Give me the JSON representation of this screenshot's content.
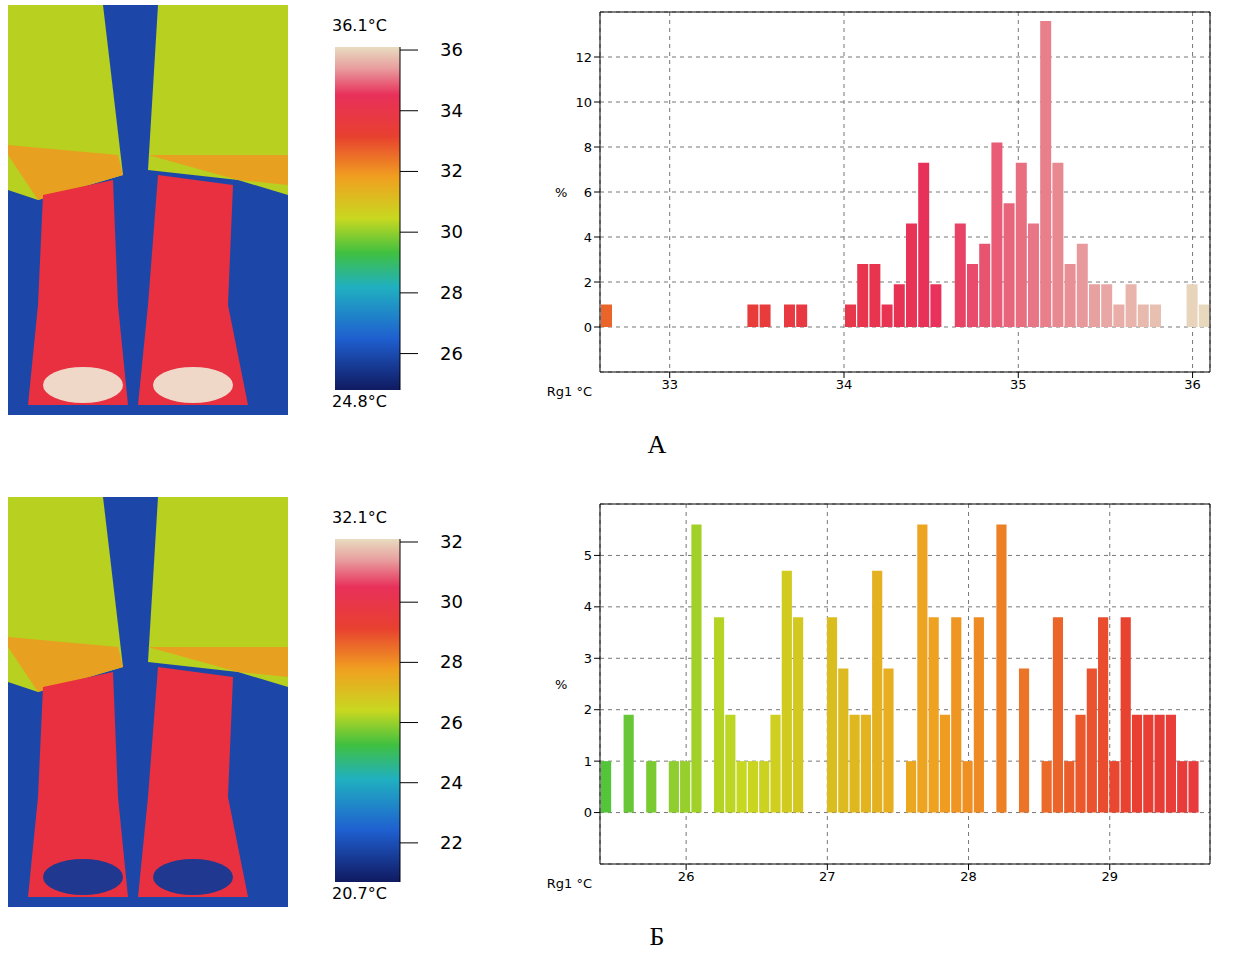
{
  "chart_data": [
    {
      "type": "histogram",
      "panel": "А",
      "x_label": "Rg1 °C",
      "y_label": "%",
      "bins": [
        32.6,
        32.67,
        32.74,
        32.81,
        32.88,
        32.95,
        33.02,
        33.09,
        33.16,
        33.23,
        33.3,
        33.37,
        33.44,
        33.51,
        33.58,
        33.65,
        33.72,
        33.79,
        33.86,
        33.93,
        34.0,
        34.07,
        34.14,
        34.21,
        34.28,
        34.35,
        34.42,
        34.49,
        34.56,
        34.63,
        34.7,
        34.77,
        34.84,
        34.91,
        34.98,
        35.05,
        35.12,
        35.19,
        35.26,
        35.33,
        35.4,
        35.47,
        35.54,
        35.61,
        35.68,
        35.75,
        35.82,
        35.89,
        35.96,
        36.03,
        36.1
      ],
      "values": [
        1,
        0,
        0,
        0,
        0,
        0,
        0,
        0,
        0,
        0,
        0,
        0,
        1,
        1,
        0,
        1,
        1,
        0,
        0,
        0,
        1,
        2.8,
        2.8,
        1,
        1.9,
        4.6,
        7.3,
        1.9,
        0,
        4.6,
        2.8,
        3.7,
        8.2,
        5.5,
        7.3,
        4.6,
        13.6,
        7.3,
        2.8,
        3.7,
        1.9,
        1.9,
        1,
        1.9,
        1,
        1,
        0,
        0,
        1.9,
        1
      ],
      "xlim": [
        32.6,
        36.1
      ],
      "xticks": [
        33,
        34,
        35,
        36
      ],
      "ylim": [
        -2,
        14
      ],
      "yticks": [
        0,
        2,
        4,
        6,
        8,
        10,
        12
      ],
      "grid": true,
      "color_bar": {
        "min": {
          "value": 24.8,
          "label": "24.8°C"
        },
        "max": {
          "value": 36.1,
          "label": "36.1°C"
        },
        "ticks": [
          26,
          28,
          30,
          32,
          34,
          36
        ]
      }
    },
    {
      "type": "histogram",
      "panel": "Б",
      "x_label": "Rg1 °C",
      "y_label": "%",
      "bins": [
        25.39,
        25.47,
        25.55,
        25.63,
        25.71,
        25.79,
        25.87,
        25.95,
        26.03,
        26.11,
        26.19,
        26.27,
        26.35,
        26.43,
        26.51,
        26.59,
        26.67,
        26.75,
        26.83,
        26.91,
        26.99,
        27.07,
        27.15,
        27.23,
        27.31,
        27.39,
        27.47,
        27.55,
        27.63,
        27.71,
        27.79,
        27.87,
        27.95,
        28.03,
        28.11,
        28.19,
        28.27,
        28.35,
        28.43,
        28.51,
        28.59,
        28.67,
        28.75,
        28.83,
        28.91,
        28.99,
        29.07,
        29.15,
        29.23,
        29.31,
        29.39,
        29.47,
        29.55,
        29.63,
        29.71
      ],
      "values": [
        1,
        0,
        1.9,
        0,
        1,
        0,
        1,
        1,
        5.6,
        0,
        3.8,
        1.9,
        1,
        1,
        1,
        1.9,
        4.7,
        3.8,
        0,
        0,
        3.8,
        2.8,
        1.9,
        1.9,
        4.7,
        2.8,
        0,
        1,
        5.6,
        3.8,
        1.9,
        3.8,
        1,
        3.8,
        0,
        5.6,
        0,
        2.8,
        0,
        1,
        3.8,
        1,
        1.9,
        2.8,
        3.8,
        1,
        3.8,
        1.9,
        1.9,
        1.9,
        1.9,
        1,
        1,
        0
      ],
      "xlim": [
        25.39,
        29.71
      ],
      "xticks": [
        26,
        27,
        28,
        29
      ],
      "ylim": [
        -1,
        6
      ],
      "yticks": [
        0,
        1,
        2,
        3,
        4,
        5
      ],
      "grid": true,
      "color_bar": {
        "min": {
          "value": 20.7,
          "label": "20.7°C"
        },
        "max": {
          "value": 32.1,
          "label": "32.1°C"
        },
        "ticks": [
          22,
          24,
          26,
          28,
          30,
          32
        ]
      }
    }
  ]
}
